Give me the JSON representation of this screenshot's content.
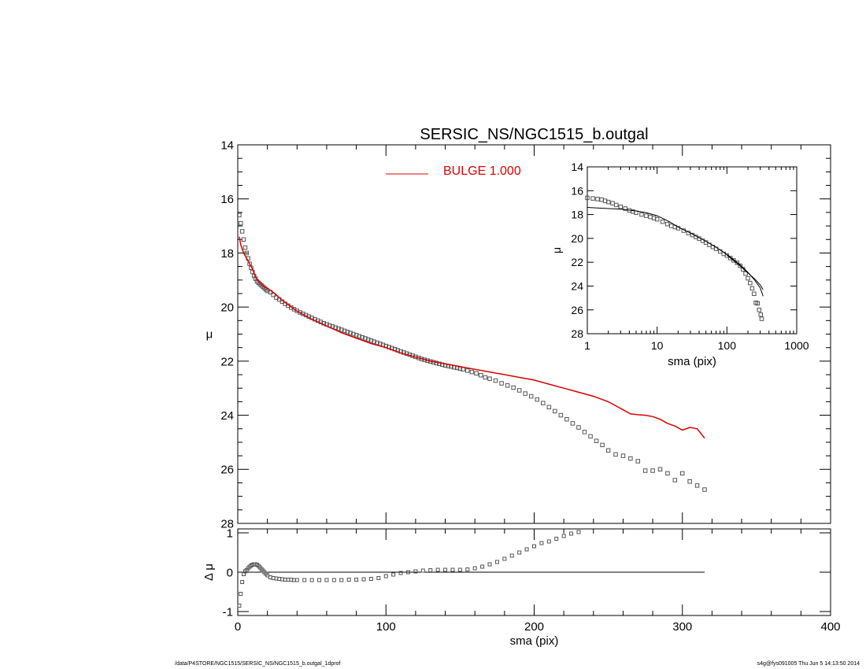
{
  "chart_data": [
    {
      "type": "scatter",
      "panel": "main",
      "title": "SERSIC_NS/NGC1515_b.outgal",
      "xlabel": "",
      "ylabel": "μ",
      "xlim": [
        0,
        400
      ],
      "ylim": [
        28,
        14
      ],
      "y_inverted": true,
      "y_ticks": [
        14,
        16,
        18,
        20,
        22,
        24,
        26,
        28
      ],
      "y_tick_labels": [
        "14",
        "16",
        "18",
        "20",
        "22",
        "24",
        "26",
        "28"
      ],
      "legend": {
        "position": "top",
        "entries": [
          {
            "label": "BULGE  1.000",
            "color": "#dd0000",
            "style": "line"
          }
        ]
      },
      "colors": {
        "data": "#555555",
        "model": "#dd0000"
      },
      "series": [
        {
          "kind": "data-squares",
          "x": [
            1,
            2,
            3,
            4,
            5,
            6,
            7,
            8,
            9,
            10,
            11,
            12,
            13,
            14,
            15,
            16,
            17,
            18,
            19,
            20,
            22,
            24,
            26,
            28,
            30,
            32,
            34,
            36,
            38,
            40,
            42,
            44,
            46,
            48,
            50,
            52,
            54,
            56,
            58,
            60,
            62,
            64,
            66,
            68,
            70,
            72,
            74,
            76,
            78,
            80,
            82,
            84,
            86,
            88,
            90,
            92,
            94,
            96,
            98,
            100,
            102,
            104,
            106,
            108,
            110,
            112,
            114,
            116,
            118,
            120,
            122,
            124,
            126,
            128,
            130,
            132,
            134,
            136,
            138,
            140,
            142,
            144,
            146,
            148,
            150,
            152,
            155,
            158,
            161,
            164,
            167,
            170,
            174,
            178,
            182,
            186,
            190,
            194,
            198,
            202,
            206,
            210,
            214,
            218,
            222,
            226,
            230,
            234,
            238,
            242,
            246,
            250,
            255,
            260,
            265,
            270,
            275,
            280,
            285,
            290,
            295,
            300,
            305,
            310,
            315
          ],
          "y": [
            16.6,
            16.9,
            17.2,
            17.5,
            17.8,
            18.0,
            18.2,
            18.4,
            18.55,
            18.7,
            18.85,
            18.95,
            19.05,
            19.1,
            19.15,
            19.2,
            19.25,
            19.3,
            19.35,
            19.4,
            19.45,
            19.55,
            19.65,
            19.72,
            19.8,
            19.88,
            19.95,
            20.02,
            20.08,
            20.14,
            20.2,
            20.25,
            20.3,
            20.35,
            20.4,
            20.45,
            20.5,
            20.55,
            20.6,
            20.64,
            20.68,
            20.72,
            20.76,
            20.8,
            20.84,
            20.88,
            20.92,
            20.96,
            21.0,
            21.04,
            21.08,
            21.12,
            21.16,
            21.2,
            21.24,
            21.28,
            21.32,
            21.36,
            21.4,
            21.44,
            21.48,
            21.52,
            21.56,
            21.6,
            21.64,
            21.68,
            21.72,
            21.76,
            21.8,
            21.84,
            21.88,
            21.92,
            21.95,
            21.98,
            22.01,
            22.04,
            22.07,
            22.1,
            22.13,
            22.16,
            22.18,
            22.2,
            22.23,
            22.25,
            22.28,
            22.3,
            22.35,
            22.4,
            22.45,
            22.52,
            22.6,
            22.65,
            22.72,
            22.82,
            22.9,
            22.98,
            23.08,
            23.2,
            23.3,
            23.42,
            23.55,
            23.7,
            23.85,
            24.0,
            24.15,
            24.3,
            24.45,
            24.62,
            24.78,
            24.95,
            25.1,
            25.3,
            25.45,
            25.5,
            25.6,
            25.7,
            26.05,
            26.05,
            26.0,
            26.15,
            26.4,
            26.15,
            26.45,
            26.6,
            26.75
          ]
        },
        {
          "kind": "model-line",
          "name": "BULGE  1.000",
          "x": [
            1,
            2,
            4,
            6,
            8,
            10,
            12,
            14,
            16,
            18,
            20,
            25,
            30,
            35,
            40,
            50,
            60,
            70,
            80,
            90,
            100,
            110,
            120,
            130,
            140,
            150,
            160,
            170,
            180,
            190,
            200,
            210,
            220,
            230,
            240,
            250,
            255,
            260,
            265,
            270,
            275,
            280,
            285,
            290,
            295,
            300,
            305,
            310,
            315
          ],
          "y": [
            17.4,
            17.7,
            18.0,
            18.2,
            18.4,
            18.6,
            18.9,
            19.05,
            19.15,
            19.25,
            19.3,
            19.5,
            19.75,
            19.95,
            20.15,
            20.45,
            20.7,
            20.95,
            21.15,
            21.35,
            21.5,
            21.7,
            21.85,
            22.0,
            22.1,
            22.2,
            22.3,
            22.4,
            22.5,
            22.6,
            22.7,
            22.85,
            23.0,
            23.15,
            23.3,
            23.5,
            23.65,
            23.8,
            23.95,
            23.98,
            24.0,
            24.05,
            24.15,
            24.3,
            24.4,
            24.55,
            24.45,
            24.5,
            24.85
          ]
        }
      ]
    },
    {
      "type": "scatter",
      "panel": "inset",
      "title": "",
      "xlabel": "sma (pix)",
      "ylabel": "μ",
      "x_log": true,
      "xlim": [
        1,
        1000
      ],
      "ylim": [
        28,
        14
      ],
      "y_inverted": true,
      "x_ticks": [
        1,
        10,
        100,
        1000
      ],
      "x_tick_labels": [
        "1",
        "10",
        "100",
        "1000"
      ],
      "y_ticks": [
        14,
        16,
        18,
        20,
        22,
        24,
        26,
        28
      ],
      "y_tick_labels": [
        "14",
        "16",
        "18",
        "20",
        "22",
        "24",
        "26",
        "28"
      ],
      "series": [
        {
          "kind": "data-squares",
          "x": [
            1.0,
            1.2,
            1.4,
            1.6,
            1.8,
            2.0,
            2.3,
            2.6,
            3.0,
            3.5,
            4.0,
            4.5,
            5,
            6,
            7,
            8,
            9,
            10,
            12,
            14,
            16,
            18,
            20,
            24,
            28,
            32,
            36,
            40,
            45,
            50,
            56,
            63,
            70,
            80,
            90,
            100,
            112,
            125,
            140,
            155,
            170,
            185,
            200,
            215,
            230,
            245,
            260,
            275,
            290,
            305,
            315
          ],
          "y": [
            16.6,
            16.65,
            16.7,
            16.75,
            16.85,
            16.95,
            17.05,
            17.2,
            17.35,
            17.5,
            17.65,
            17.75,
            17.85,
            18.0,
            18.1,
            18.2,
            18.3,
            18.4,
            18.6,
            18.8,
            18.95,
            19.05,
            19.15,
            19.35,
            19.55,
            19.72,
            19.88,
            20.02,
            20.2,
            20.35,
            20.55,
            20.72,
            20.88,
            21.1,
            21.3,
            21.45,
            21.65,
            21.85,
            22.05,
            22.3,
            22.6,
            22.95,
            23.35,
            23.75,
            24.2,
            24.65,
            25.4,
            25.45,
            26.0,
            26.4,
            26.75
          ]
        },
        {
          "kind": "model-line",
          "x": [
            1,
            2,
            3,
            5,
            7,
            10,
            15,
            20,
            30,
            50,
            70,
            100,
            150,
            200,
            250,
            300,
            330
          ],
          "y": [
            17.4,
            17.5,
            17.55,
            17.7,
            17.85,
            18.1,
            18.6,
            19.05,
            19.55,
            20.25,
            20.75,
            21.35,
            22.15,
            22.85,
            23.5,
            24.15,
            24.85
          ]
        },
        {
          "kind": "model-line",
          "x": [
            100,
            150,
            200,
            250,
            300,
            330
          ],
          "y": [
            21.4,
            22.25,
            22.9,
            23.4,
            23.9,
            24.3
          ]
        }
      ]
    },
    {
      "type": "scatter",
      "panel": "residual",
      "title": "",
      "xlabel": "sma (pix)",
      "ylabel": "Δ μ",
      "xlim": [
        0,
        400
      ],
      "ylim": [
        -1.1,
        1.1
      ],
      "x_ticks": [
        0,
        100,
        200,
        300,
        400
      ],
      "x_tick_labels": [
        "0",
        "100",
        "200",
        "300",
        "400"
      ],
      "y_ticks": [
        -1,
        0,
        1
      ],
      "y_tick_labels": [
        "-1",
        "0",
        "1"
      ],
      "zero_line": {
        "x": [
          0,
          315
        ],
        "y": 0
      },
      "series": [
        {
          "kind": "residual-squares",
          "x": [
            1,
            2,
            3,
            4,
            5,
            6,
            7,
            8,
            9,
            10,
            11,
            12,
            13,
            14,
            15,
            16,
            17,
            18,
            19,
            20,
            22,
            24,
            26,
            28,
            30,
            32,
            34,
            36,
            38,
            40,
            45,
            50,
            55,
            60,
            65,
            70,
            75,
            80,
            85,
            90,
            95,
            100,
            105,
            110,
            115,
            120,
            125,
            130,
            135,
            140,
            145,
            150,
            155,
            160,
            165,
            170,
            175,
            180,
            185,
            190,
            195,
            200,
            205,
            210,
            215,
            220,
            225,
            230
          ],
          "y": [
            -0.85,
            -0.55,
            -0.25,
            -0.05,
            0.02,
            0.05,
            0.1,
            0.14,
            0.17,
            0.19,
            0.2,
            0.2,
            0.19,
            0.16,
            0.12,
            0.08,
            0.04,
            0.0,
            -0.04,
            -0.08,
            -0.13,
            -0.15,
            -0.16,
            -0.17,
            -0.18,
            -0.19,
            -0.19,
            -0.19,
            -0.2,
            -0.2,
            -0.2,
            -0.2,
            -0.2,
            -0.2,
            -0.2,
            -0.2,
            -0.19,
            -0.19,
            -0.18,
            -0.17,
            -0.15,
            -0.1,
            -0.06,
            -0.02,
            0.0,
            0.02,
            0.04,
            0.05,
            0.06,
            0.06,
            0.06,
            0.06,
            0.07,
            0.1,
            0.14,
            0.2,
            0.26,
            0.34,
            0.42,
            0.5,
            0.58,
            0.66,
            0.74,
            0.78,
            0.85,
            0.92,
            0.98,
            1.02
          ]
        }
      ]
    }
  ],
  "footer": {
    "path": "/data/P4STORE/NGC1515/SERSIC_NS/NGC1515_b.outgal_1dprof",
    "stamp": "s4g@fys091005  Thu Jun  5 14:13:50 2014"
  }
}
